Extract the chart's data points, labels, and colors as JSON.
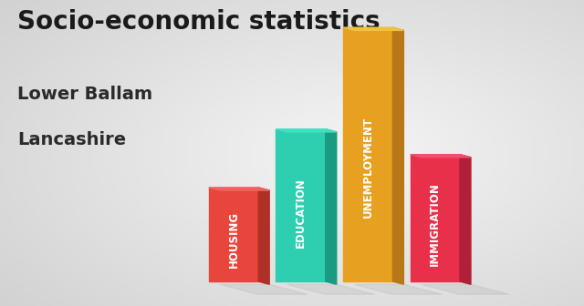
{
  "title": "Socio-economic statistics",
  "subtitle1": "Lower Ballam",
  "subtitle2": "Lancashire",
  "categories": [
    "HOUSING",
    "EDUCATION",
    "UNEMPLOYMENT",
    "IMMIGRATION"
  ],
  "values": [
    0.37,
    0.6,
    1.0,
    0.5
  ],
  "bar_front_colors": [
    "#E8453C",
    "#2ECFB1",
    "#E8A020",
    "#E8304A"
  ],
  "bar_side_colors": [
    "#B03028",
    "#1A9A82",
    "#B87818",
    "#B02038"
  ],
  "bar_top_colors": [
    "#F06060",
    "#40E0C0",
    "#F0C040",
    "#F05070"
  ],
  "background_color": "#D8D8D8",
  "title_fontsize": 20,
  "subtitle_fontsize": 14,
  "label_fontsize": 8.5,
  "figsize": [
    6.4,
    3.36
  ]
}
